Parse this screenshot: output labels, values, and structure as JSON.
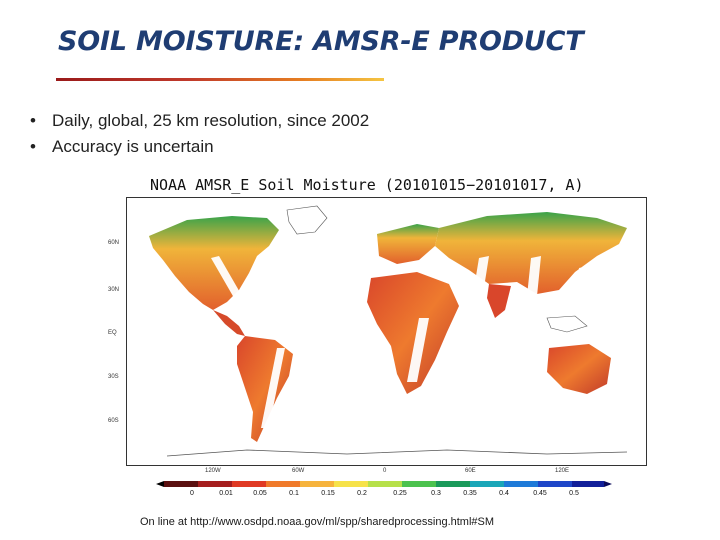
{
  "slide": {
    "title": "SOIL MOISTURE: AMSR-E PRODUCT",
    "bullets": [
      "Daily, global, 25 km resolution, since 2002",
      "Accuracy is uncertain"
    ],
    "bullet_symbol": "•",
    "source": "On line at http://www.osdpd.noaa.gov/ml/spp/sharedprocessing.html#SM"
  },
  "map": {
    "title": "NOAA AMSR_E Soil Moisture (20101015−20101017, A)",
    "lat_labels": [
      "60N",
      "30N",
      "EQ",
      "30S",
      "60S"
    ],
    "lon_labels": [
      "120W",
      "60W",
      "0",
      "60E",
      "120E"
    ],
    "colorbar_labels": [
      "0",
      "0.01",
      "0.05",
      "0.1",
      "0.15",
      "0.2",
      "0.25",
      "0.3",
      "0.35",
      "0.4",
      "0.45",
      "0.5"
    ]
  },
  "colors": {
    "title": "#1f3d73",
    "ocean": "#ffffff",
    "dry": "#c0392b",
    "wet": "#1a7a2e"
  }
}
